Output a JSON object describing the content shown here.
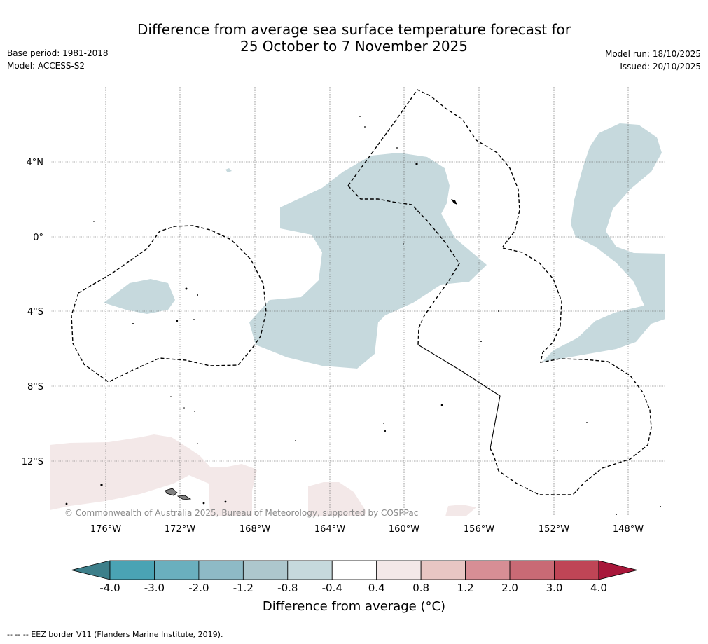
{
  "title": {
    "line1": "Difference from average sea surface temperature forecast for",
    "line2": "25 October to 7 November 2025"
  },
  "meta_left": {
    "base_period": "Base period: 1981-2018",
    "model": "Model: ACCESS-S2"
  },
  "meta_right": {
    "model_run": "Model run: 18/10/2025",
    "issued": "Issued: 20/10/2025"
  },
  "map": {
    "lat_labels": [
      "4°N",
      "0°",
      "4°S",
      "8°S",
      "12°S"
    ],
    "lon_labels": [
      "176°W",
      "172°W",
      "168°W",
      "164°W",
      "160°W",
      "156°W",
      "152°W",
      "148°W"
    ],
    "copyright": "© Commonwealth of Australia 2025, Bureau of Meteorology, supported by COSPPac",
    "colors": {
      "cool_anomaly": "#c6d9dd",
      "warm_anomaly": "#f3e8e8",
      "land": "#808080"
    }
  },
  "colorbar": {
    "ticks": [
      "-4.0",
      "-3.0",
      "-2.0",
      "-1.2",
      "-0.8",
      "-0.4",
      "0.4",
      "0.8",
      "1.2",
      "2.0",
      "3.0",
      "4.0"
    ],
    "colors": [
      "#3d7f8a",
      "#4aa3b4",
      "#6aafbe",
      "#8ebac6",
      "#adc7cd",
      "#c6d9dd",
      "#ffffff",
      "#f3e8e8",
      "#e8c6c3",
      "#d78e95",
      "#c96a75",
      "#bf4556",
      "#a8173a"
    ],
    "label": "Difference from average (°C)"
  },
  "footer": "--  --  -- EEZ border V11 (Flanders Marine Institute, 2019)."
}
